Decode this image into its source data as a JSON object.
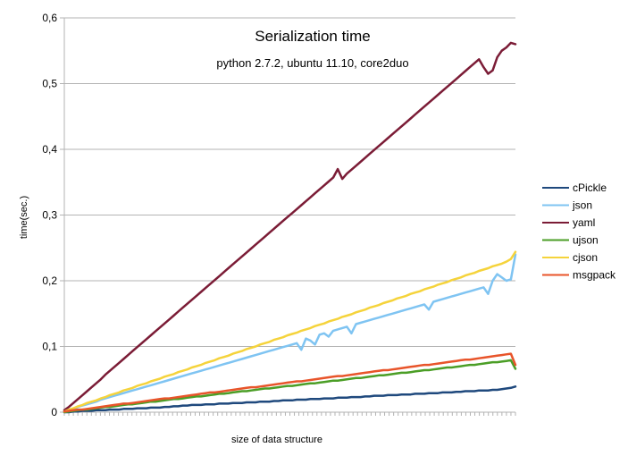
{
  "chart_data": {
    "type": "line",
    "title": "Serialization time",
    "subtitle": "python 2.7.2, ubuntu 11.10, core2duo",
    "xlabel": "size of data structure",
    "ylabel": "time(sec.)",
    "ylim": [
      0,
      0.6
    ],
    "yticks": [
      "0",
      "0,1",
      "0,2",
      "0,3",
      "0,4",
      "0,5",
      "0,6"
    ],
    "grid": "horizontal",
    "legend_position": "right",
    "n_points": 100,
    "series": [
      {
        "name": "cPickle",
        "color": "#1f497d",
        "values": [
          0,
          0,
          0.001,
          0.001,
          0.002,
          0.002,
          0.002,
          0.003,
          0.003,
          0.003,
          0.004,
          0.004,
          0.004,
          0.005,
          0.005,
          0.005,
          0.006,
          0.006,
          0.006,
          0.007,
          0.007,
          0.007,
          0.008,
          0.008,
          0.009,
          0.009,
          0.01,
          0.01,
          0.011,
          0.011,
          0.011,
          0.012,
          0.012,
          0.012,
          0.013,
          0.013,
          0.013,
          0.014,
          0.014,
          0.014,
          0.015,
          0.015,
          0.015,
          0.016,
          0.016,
          0.016,
          0.017,
          0.017,
          0.018,
          0.018,
          0.018,
          0.019,
          0.019,
          0.019,
          0.02,
          0.02,
          0.02,
          0.021,
          0.021,
          0.021,
          0.022,
          0.022,
          0.022,
          0.023,
          0.023,
          0.023,
          0.024,
          0.024,
          0.025,
          0.025,
          0.025,
          0.026,
          0.026,
          0.026,
          0.027,
          0.027,
          0.027,
          0.028,
          0.028,
          0.028,
          0.029,
          0.029,
          0.029,
          0.03,
          0.03,
          0.03,
          0.031,
          0.031,
          0.032,
          0.032,
          0.032,
          0.033,
          0.033,
          0.033,
          0.034,
          0.034,
          0.035,
          0.036,
          0.037,
          0.039
        ]
      },
      {
        "name": "json",
        "color": "#7fc4f2",
        "values": [
          0,
          0.003,
          0.005,
          0.008,
          0.01,
          0.012,
          0.014,
          0.016,
          0.019,
          0.021,
          0.023,
          0.025,
          0.027,
          0.029,
          0.031,
          0.033,
          0.035,
          0.037,
          0.039,
          0.041,
          0.043,
          0.045,
          0.047,
          0.049,
          0.051,
          0.053,
          0.055,
          0.057,
          0.059,
          0.061,
          0.063,
          0.065,
          0.067,
          0.069,
          0.071,
          0.073,
          0.075,
          0.077,
          0.079,
          0.081,
          0.083,
          0.085,
          0.087,
          0.089,
          0.091,
          0.093,
          0.095,
          0.097,
          0.099,
          0.101,
          0.103,
          0.105,
          0.095,
          0.112,
          0.109,
          0.103,
          0.118,
          0.12,
          0.115,
          0.124,
          0.126,
          0.128,
          0.13,
          0.12,
          0.134,
          0.136,
          0.138,
          0.14,
          0.142,
          0.144,
          0.146,
          0.148,
          0.15,
          0.152,
          0.154,
          0.156,
          0.158,
          0.16,
          0.162,
          0.164,
          0.156,
          0.168,
          0.17,
          0.172,
          0.174,
          0.176,
          0.178,
          0.18,
          0.182,
          0.184,
          0.186,
          0.188,
          0.19,
          0.18,
          0.2,
          0.21,
          0.205,
          0.2,
          0.202,
          0.24
        ]
      },
      {
        "name": "yaml",
        "color": "#7b1c36",
        "values": [
          0.003,
          0.008,
          0.014,
          0.02,
          0.026,
          0.032,
          0.038,
          0.044,
          0.05,
          0.057,
          0.063,
          0.069,
          0.075,
          0.081,
          0.087,
          0.093,
          0.099,
          0.105,
          0.111,
          0.117,
          0.123,
          0.129,
          0.135,
          0.141,
          0.147,
          0.153,
          0.159,
          0.165,
          0.171,
          0.177,
          0.183,
          0.189,
          0.195,
          0.201,
          0.207,
          0.213,
          0.219,
          0.225,
          0.231,
          0.237,
          0.243,
          0.249,
          0.255,
          0.261,
          0.267,
          0.273,
          0.279,
          0.285,
          0.291,
          0.297,
          0.303,
          0.309,
          0.315,
          0.321,
          0.327,
          0.333,
          0.339,
          0.345,
          0.351,
          0.357,
          0.37,
          0.355,
          0.363,
          0.369,
          0.375,
          0.381,
          0.387,
          0.393,
          0.399,
          0.405,
          0.411,
          0.417,
          0.423,
          0.429,
          0.435,
          0.441,
          0.447,
          0.453,
          0.459,
          0.465,
          0.471,
          0.477,
          0.483,
          0.489,
          0.495,
          0.501,
          0.507,
          0.513,
          0.519,
          0.525,
          0.531,
          0.537,
          0.525,
          0.515,
          0.52,
          0.54,
          0.55,
          0.555,
          0.562,
          0.56
        ]
      },
      {
        "name": "ujson",
        "color": "#4b9e26",
        "values": [
          0,
          0.001,
          0.002,
          0.003,
          0.004,
          0.004,
          0.005,
          0.006,
          0.007,
          0.008,
          0.008,
          0.009,
          0.01,
          0.011,
          0.012,
          0.012,
          0.013,
          0.014,
          0.015,
          0.016,
          0.016,
          0.017,
          0.018,
          0.019,
          0.02,
          0.02,
          0.021,
          0.022,
          0.023,
          0.024,
          0.024,
          0.025,
          0.026,
          0.027,
          0.028,
          0.028,
          0.029,
          0.03,
          0.031,
          0.032,
          0.032,
          0.033,
          0.034,
          0.035,
          0.036,
          0.036,
          0.037,
          0.038,
          0.039,
          0.04,
          0.04,
          0.041,
          0.042,
          0.043,
          0.044,
          0.044,
          0.045,
          0.046,
          0.047,
          0.048,
          0.048,
          0.049,
          0.05,
          0.051,
          0.052,
          0.052,
          0.053,
          0.054,
          0.055,
          0.056,
          0.056,
          0.057,
          0.058,
          0.059,
          0.06,
          0.06,
          0.061,
          0.062,
          0.063,
          0.064,
          0.064,
          0.065,
          0.066,
          0.067,
          0.068,
          0.068,
          0.069,
          0.07,
          0.071,
          0.072,
          0.072,
          0.073,
          0.074,
          0.075,
          0.076,
          0.076,
          0.077,
          0.078,
          0.079,
          0.066
        ]
      },
      {
        "name": "cjson",
        "color": "#f5d33b",
        "values": [
          0.001,
          0.004,
          0.006,
          0.009,
          0.011,
          0.014,
          0.016,
          0.018,
          0.021,
          0.023,
          0.026,
          0.028,
          0.03,
          0.033,
          0.035,
          0.037,
          0.04,
          0.042,
          0.044,
          0.047,
          0.049,
          0.051,
          0.054,
          0.056,
          0.058,
          0.061,
          0.063,
          0.065,
          0.068,
          0.07,
          0.072,
          0.075,
          0.077,
          0.079,
          0.082,
          0.084,
          0.086,
          0.089,
          0.091,
          0.093,
          0.096,
          0.098,
          0.1,
          0.103,
          0.105,
          0.107,
          0.11,
          0.112,
          0.114,
          0.117,
          0.119,
          0.121,
          0.124,
          0.126,
          0.128,
          0.131,
          0.133,
          0.135,
          0.138,
          0.14,
          0.142,
          0.145,
          0.147,
          0.149,
          0.152,
          0.154,
          0.156,
          0.159,
          0.161,
          0.163,
          0.166,
          0.168,
          0.17,
          0.173,
          0.175,
          0.177,
          0.18,
          0.182,
          0.184,
          0.187,
          0.189,
          0.191,
          0.194,
          0.196,
          0.198,
          0.201,
          0.203,
          0.205,
          0.208,
          0.21,
          0.212,
          0.215,
          0.217,
          0.219,
          0.222,
          0.224,
          0.226,
          0.229,
          0.233,
          0.244
        ]
      },
      {
        "name": "msgpack",
        "color": "#e8542a",
        "values": [
          0.001,
          0.002,
          0.003,
          0.004,
          0.004,
          0.005,
          0.006,
          0.007,
          0.008,
          0.009,
          0.01,
          0.011,
          0.012,
          0.013,
          0.013,
          0.014,
          0.015,
          0.016,
          0.017,
          0.018,
          0.019,
          0.02,
          0.021,
          0.021,
          0.022,
          0.023,
          0.024,
          0.025,
          0.026,
          0.027,
          0.028,
          0.029,
          0.03,
          0.03,
          0.031,
          0.032,
          0.033,
          0.034,
          0.035,
          0.036,
          0.037,
          0.038,
          0.038,
          0.039,
          0.04,
          0.041,
          0.042,
          0.043,
          0.044,
          0.045,
          0.046,
          0.047,
          0.047,
          0.048,
          0.049,
          0.05,
          0.051,
          0.052,
          0.053,
          0.054,
          0.055,
          0.055,
          0.056,
          0.057,
          0.058,
          0.059,
          0.06,
          0.061,
          0.062,
          0.063,
          0.064,
          0.064,
          0.065,
          0.066,
          0.067,
          0.068,
          0.069,
          0.07,
          0.071,
          0.072,
          0.072,
          0.073,
          0.074,
          0.075,
          0.076,
          0.077,
          0.078,
          0.079,
          0.08,
          0.08,
          0.081,
          0.082,
          0.083,
          0.084,
          0.085,
          0.086,
          0.087,
          0.088,
          0.089,
          0.072
        ]
      }
    ]
  }
}
